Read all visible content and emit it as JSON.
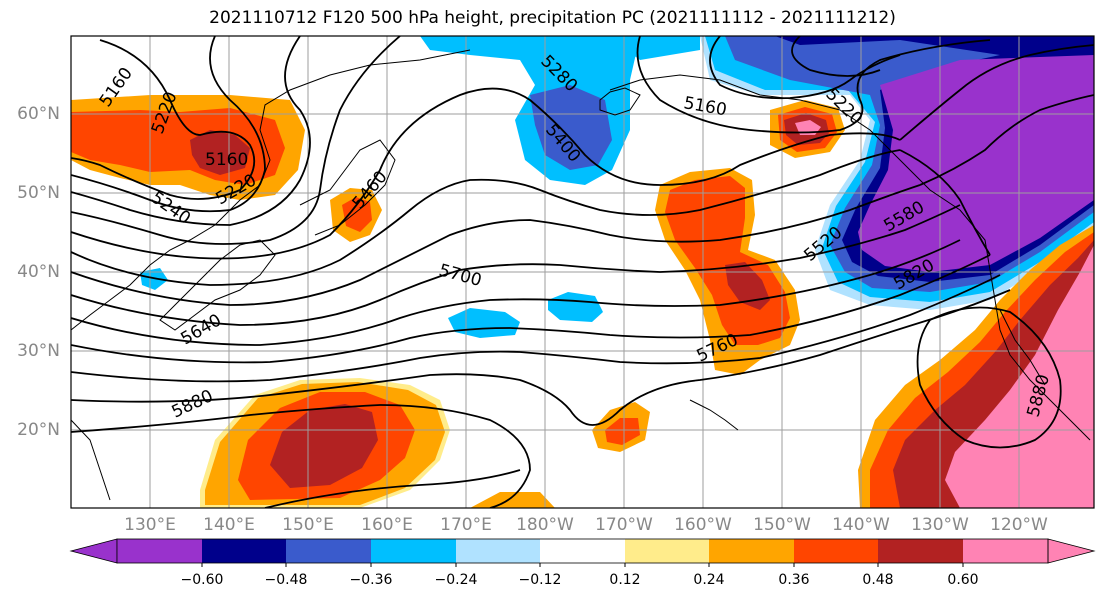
{
  "title": "2021110712 F120 500 hPa height, precipitation PC (2021111112 - 2021111212)",
  "lat_labels": [
    "60°N",
    "50°N",
    "40°N",
    "30°N",
    "20°N"
  ],
  "lon_labels": [
    "130°E",
    "140°E",
    "150°E",
    "160°E",
    "170°E",
    "180°W",
    "170°W",
    "160°W",
    "150°W",
    "140°W",
    "130°W",
    "120°W"
  ],
  "contour_labels": [
    "5160",
    "5220",
    "5280",
    "5400",
    "5160",
    "5220",
    "5160",
    "5220",
    "5240",
    "5460",
    "5700",
    "5640",
    "5580",
    "5520",
    "5820",
    "5760",
    "5880",
    "5880"
  ],
  "colorbar": {
    "ticks": [
      "−0.60",
      "−0.48",
      "−0.36",
      "−0.24",
      "−0.12",
      "0.12",
      "0.24",
      "0.36",
      "0.48",
      "0.60"
    ],
    "colors": [
      "#9932cc",
      "#00008b",
      "#3a5bcc",
      "#00bfff",
      "#b0e2ff",
      "#ffffff",
      "#ffec8b",
      "#ffa500",
      "#ff4500",
      "#b22222",
      "#ff83b4"
    ]
  },
  "palette": {
    "pink": "#ff83b4",
    "darkred": "#b22222",
    "orangered": "#ff4500",
    "orange": "#ffa500",
    "lightyellow": "#ffec8b",
    "lightblue": "#b0e2ff",
    "deepskyblue": "#00bfff",
    "royalblue": "#3a5bcc",
    "navy": "#00008b",
    "purple": "#9932cc"
  }
}
